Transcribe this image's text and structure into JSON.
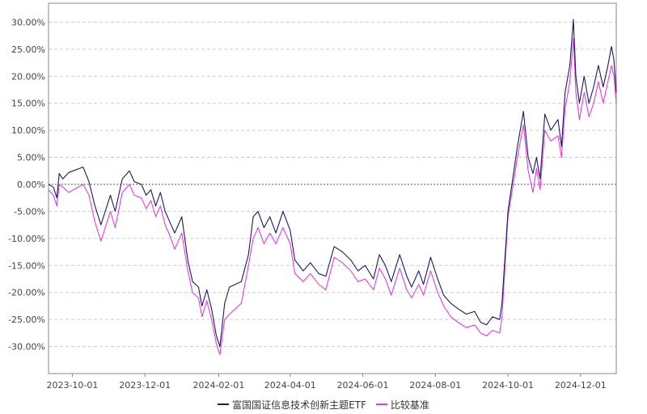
{
  "chart_data": {
    "type": "line",
    "title": "",
    "xlabel": "",
    "ylabel": "",
    "x_ticks": [
      "2023-10-01",
      "2023-12-01",
      "2024-02-01",
      "2024-04-01",
      "2024-06-01",
      "2024-08-01",
      "2024-10-01",
      "2024-12-01"
    ],
    "y_ticks": [
      "30.00%",
      "25.00%",
      "20.00%",
      "15.00%",
      "10.00%",
      "5.00%",
      "0.00%",
      "-5.00%",
      "-10.00%",
      "-15.00%",
      "-20.00%",
      "-25.00%",
      "-30.00%"
    ],
    "xlim": [
      "2023-09-11",
      "2024-12-31"
    ],
    "ylim": [
      -35,
      33.5
    ],
    "grid": true,
    "legend_position": "bottom-center",
    "series": [
      {
        "name": "富国国证信息技术创新主题ETF",
        "color": "#1a1a5e",
        "points": [
          [
            "2023-09-11",
            0.0
          ],
          [
            "2023-09-15",
            -0.5
          ],
          [
            "2023-09-18",
            -2.5
          ],
          [
            "2023-09-20",
            2.0
          ],
          [
            "2023-09-23",
            1.0
          ],
          [
            "2023-09-28",
            2.2
          ],
          [
            "2023-10-10",
            3.2
          ],
          [
            "2023-10-15",
            0.5
          ],
          [
            "2023-10-20",
            -4.0
          ],
          [
            "2023-10-25",
            -7.5
          ],
          [
            "2023-11-02",
            -2.0
          ],
          [
            "2023-11-06",
            -5.0
          ],
          [
            "2023-11-12",
            1.0
          ],
          [
            "2023-11-18",
            2.5
          ],
          [
            "2023-11-22",
            0.5
          ],
          [
            "2023-11-28",
            0.0
          ],
          [
            "2023-12-02",
            -2.0
          ],
          [
            "2023-12-06",
            -1.0
          ],
          [
            "2023-12-10",
            -4.0
          ],
          [
            "2023-12-14",
            -1.5
          ],
          [
            "2023-12-18",
            -5.0
          ],
          [
            "2023-12-22",
            -7.0
          ],
          [
            "2023-12-26",
            -9.0
          ],
          [
            "2024-01-01",
            -6.0
          ],
          [
            "2024-01-06",
            -14.0
          ],
          [
            "2024-01-10",
            -18.0
          ],
          [
            "2024-01-15",
            -19.0
          ],
          [
            "2024-01-18",
            -22.5
          ],
          [
            "2024-01-22",
            -19.5
          ],
          [
            "2024-01-26",
            -23.0
          ],
          [
            "2024-01-30",
            -28.0
          ],
          [
            "2024-02-02",
            -30.0
          ],
          [
            "2024-02-06",
            -22.0
          ],
          [
            "2024-02-10",
            -19.0
          ],
          [
            "2024-02-20",
            -18.0
          ],
          [
            "2024-02-26",
            -13.0
          ],
          [
            "2024-03-01",
            -6.0
          ],
          [
            "2024-03-05",
            -5.0
          ],
          [
            "2024-03-10",
            -8.0
          ],
          [
            "2024-03-15",
            -6.0
          ],
          [
            "2024-03-20",
            -9.0
          ],
          [
            "2024-03-26",
            -5.0
          ],
          [
            "2024-04-01",
            -8.5
          ],
          [
            "2024-04-05",
            -14.0
          ],
          [
            "2024-04-12",
            -16.0
          ],
          [
            "2024-04-18",
            -14.5
          ],
          [
            "2024-04-25",
            -16.5
          ],
          [
            "2024-05-01",
            -17.0
          ],
          [
            "2024-05-08",
            -11.5
          ],
          [
            "2024-05-15",
            -12.5
          ],
          [
            "2024-05-22",
            -14.0
          ],
          [
            "2024-05-28",
            -16.0
          ],
          [
            "2024-06-03",
            -15.0
          ],
          [
            "2024-06-10",
            -17.5
          ],
          [
            "2024-06-15",
            -13.0
          ],
          [
            "2024-06-20",
            -15.0
          ],
          [
            "2024-06-25",
            -18.0
          ],
          [
            "2024-07-02",
            -13.0
          ],
          [
            "2024-07-08",
            -17.0
          ],
          [
            "2024-07-12",
            -19.0
          ],
          [
            "2024-07-18",
            -16.0
          ],
          [
            "2024-07-22",
            -18.5
          ],
          [
            "2024-07-28",
            -13.5
          ],
          [
            "2024-08-03",
            -17.5
          ],
          [
            "2024-08-08",
            -20.5
          ],
          [
            "2024-08-14",
            -22.0
          ],
          [
            "2024-08-20",
            -23.0
          ],
          [
            "2024-08-27",
            -24.0
          ],
          [
            "2024-09-03",
            -23.5
          ],
          [
            "2024-09-08",
            -25.5
          ],
          [
            "2024-09-13",
            -26.0
          ],
          [
            "2024-09-18",
            -24.5
          ],
          [
            "2024-09-24",
            -25.0
          ],
          [
            "2024-09-26",
            -22.0
          ],
          [
            "2024-10-01",
            -5.0
          ],
          [
            "2024-10-09",
            7.0
          ],
          [
            "2024-10-14",
            13.5
          ],
          [
            "2024-10-18",
            5.0
          ],
          [
            "2024-10-22",
            2.0
          ],
          [
            "2024-10-25",
            5.0
          ],
          [
            "2024-10-28",
            1.0
          ],
          [
            "2024-11-01",
            13.0
          ],
          [
            "2024-11-06",
            10.0
          ],
          [
            "2024-11-12",
            12.0
          ],
          [
            "2024-11-15",
            7.0
          ],
          [
            "2024-11-18",
            17.0
          ],
          [
            "2024-11-22",
            22.0
          ],
          [
            "2024-11-25",
            30.5
          ],
          [
            "2024-11-27",
            20.0
          ],
          [
            "2024-11-30",
            15.0
          ],
          [
            "2024-12-04",
            20.0
          ],
          [
            "2024-12-08",
            15.0
          ],
          [
            "2024-12-12",
            18.0
          ],
          [
            "2024-12-16",
            22.0
          ],
          [
            "2024-12-20",
            18.0
          ],
          [
            "2024-12-24",
            22.0
          ],
          [
            "2024-12-27",
            25.5
          ],
          [
            "2024-12-29",
            23.0
          ],
          [
            "2024-12-31",
            17.0
          ]
        ]
      },
      {
        "name": "比较基准",
        "color": "#e040e0",
        "points": [
          [
            "2023-09-11",
            -1.0
          ],
          [
            "2023-09-15",
            -2.0
          ],
          [
            "2023-09-18",
            -4.0
          ],
          [
            "2023-09-20",
            0.0
          ],
          [
            "2023-09-23",
            -0.5
          ],
          [
            "2023-09-28",
            -1.5
          ],
          [
            "2023-10-10",
            0.0
          ],
          [
            "2023-10-15",
            -2.0
          ],
          [
            "2023-10-20",
            -7.0
          ],
          [
            "2023-10-25",
            -10.5
          ],
          [
            "2023-11-02",
            -5.0
          ],
          [
            "2023-11-06",
            -8.0
          ],
          [
            "2023-11-12",
            -1.5
          ],
          [
            "2023-11-18",
            0.0
          ],
          [
            "2023-11-22",
            -2.0
          ],
          [
            "2023-11-28",
            -2.5
          ],
          [
            "2023-12-02",
            -4.5
          ],
          [
            "2023-12-06",
            -3.0
          ],
          [
            "2023-12-10",
            -6.0
          ],
          [
            "2023-12-14",
            -4.0
          ],
          [
            "2023-12-18",
            -7.5
          ],
          [
            "2023-12-22",
            -9.5
          ],
          [
            "2023-12-26",
            -12.0
          ],
          [
            "2024-01-01",
            -9.0
          ],
          [
            "2024-01-06",
            -16.0
          ],
          [
            "2024-01-10",
            -20.0
          ],
          [
            "2024-01-15",
            -21.0
          ],
          [
            "2024-01-18",
            -24.5
          ],
          [
            "2024-01-22",
            -21.5
          ],
          [
            "2024-01-26",
            -25.0
          ],
          [
            "2024-01-30",
            -29.5
          ],
          [
            "2024-02-02",
            -31.5
          ],
          [
            "2024-02-06",
            -25.0
          ],
          [
            "2024-02-10",
            -24.0
          ],
          [
            "2024-02-20",
            -22.0
          ],
          [
            "2024-02-26",
            -15.0
          ],
          [
            "2024-03-01",
            -10.0
          ],
          [
            "2024-03-05",
            -8.0
          ],
          [
            "2024-03-10",
            -11.0
          ],
          [
            "2024-03-15",
            -9.0
          ],
          [
            "2024-03-20",
            -11.0
          ],
          [
            "2024-03-26",
            -8.0
          ],
          [
            "2024-04-01",
            -11.0
          ],
          [
            "2024-04-05",
            -16.5
          ],
          [
            "2024-04-12",
            -18.0
          ],
          [
            "2024-04-18",
            -16.5
          ],
          [
            "2024-04-25",
            -18.5
          ],
          [
            "2024-05-01",
            -19.5
          ],
          [
            "2024-05-08",
            -13.5
          ],
          [
            "2024-05-15",
            -14.5
          ],
          [
            "2024-05-22",
            -16.0
          ],
          [
            "2024-05-28",
            -18.0
          ],
          [
            "2024-06-03",
            -17.5
          ],
          [
            "2024-06-10",
            -19.5
          ],
          [
            "2024-06-15",
            -15.5
          ],
          [
            "2024-06-20",
            -17.5
          ],
          [
            "2024-06-25",
            -20.5
          ],
          [
            "2024-07-02",
            -15.5
          ],
          [
            "2024-07-08",
            -19.5
          ],
          [
            "2024-07-12",
            -21.0
          ],
          [
            "2024-07-18",
            -18.5
          ],
          [
            "2024-07-22",
            -20.5
          ],
          [
            "2024-07-28",
            -16.0
          ],
          [
            "2024-08-03",
            -20.0
          ],
          [
            "2024-08-08",
            -22.5
          ],
          [
            "2024-08-14",
            -24.5
          ],
          [
            "2024-08-20",
            -25.5
          ],
          [
            "2024-08-27",
            -26.5
          ],
          [
            "2024-09-03",
            -26.0
          ],
          [
            "2024-09-08",
            -27.5
          ],
          [
            "2024-09-13",
            -28.0
          ],
          [
            "2024-09-18",
            -27.0
          ],
          [
            "2024-09-24",
            -27.5
          ],
          [
            "2024-09-26",
            -24.5
          ],
          [
            "2024-10-01",
            -6.0
          ],
          [
            "2024-10-09",
            5.0
          ],
          [
            "2024-10-14",
            11.0
          ],
          [
            "2024-10-18",
            2.5
          ],
          [
            "2024-10-22",
            -1.5
          ],
          [
            "2024-10-25",
            3.0
          ],
          [
            "2024-10-28",
            -1.0
          ],
          [
            "2024-11-01",
            10.0
          ],
          [
            "2024-11-06",
            8.0
          ],
          [
            "2024-11-12",
            9.0
          ],
          [
            "2024-11-15",
            5.0
          ],
          [
            "2024-11-18",
            14.0
          ],
          [
            "2024-11-22",
            19.0
          ],
          [
            "2024-11-25",
            27.0
          ],
          [
            "2024-11-27",
            17.0
          ],
          [
            "2024-11-30",
            12.0
          ],
          [
            "2024-12-04",
            17.0
          ],
          [
            "2024-12-08",
            12.5
          ],
          [
            "2024-12-12",
            15.0
          ],
          [
            "2024-12-16",
            19.0
          ],
          [
            "2024-12-20",
            15.0
          ],
          [
            "2024-12-24",
            19.0
          ],
          [
            "2024-12-27",
            22.0
          ],
          [
            "2024-12-29",
            20.0
          ],
          [
            "2024-12-31",
            15.0
          ]
        ]
      }
    ]
  },
  "legend": {
    "fund_label": "富国国证信息技术创新主题ETF",
    "benchmark_label": "比较基准"
  }
}
